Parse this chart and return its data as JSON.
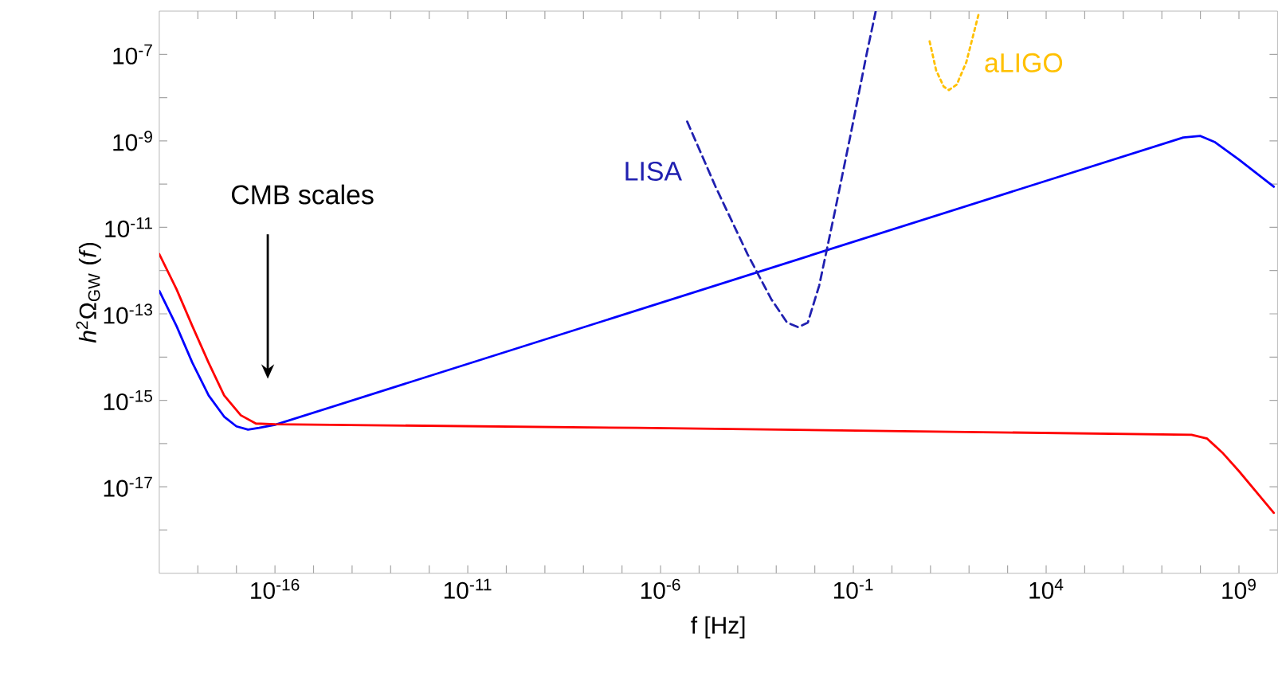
{
  "chart_data": {
    "type": "line",
    "log": "xy",
    "xlabel": "f [Hz]",
    "ylabel": "*h*$^{2}$Ω$_{GW}$ (*f*)",
    "marker": "none",
    "grid": false,
    "xlim": [
      1e-19,
      10000000000.0
    ],
    "ylim": [
      1e-19,
      1e-06
    ],
    "xticks": [
      {
        "value": 1e-18,
        "label": null
      },
      {
        "value": 1e-17,
        "label": null
      },
      {
        "value": 1e-16,
        "label": "10$^{-16}$"
      },
      {
        "value": 1e-15,
        "label": null
      },
      {
        "value": 1e-14,
        "label": null
      },
      {
        "value": 1e-13,
        "label": null
      },
      {
        "value": 1e-12,
        "label": null
      },
      {
        "value": 1e-11,
        "label": "10$^{-11}$"
      },
      {
        "value": 1e-10,
        "label": null
      },
      {
        "value": 1e-09,
        "label": null
      },
      {
        "value": 1e-08,
        "label": null
      },
      {
        "value": 1e-07,
        "label": null
      },
      {
        "value": 1e-06,
        "label": "10$^{-6}$"
      },
      {
        "value": 1e-05,
        "label": null
      },
      {
        "value": 0.0001,
        "label": null
      },
      {
        "value": 0.001,
        "label": null
      },
      {
        "value": 0.01,
        "label": null
      },
      {
        "value": 0.1,
        "label": "10$^{-1}$"
      },
      {
        "value": 1,
        "label": null
      },
      {
        "value": 10,
        "label": null
      },
      {
        "value": 100,
        "label": null
      },
      {
        "value": 1000,
        "label": null
      },
      {
        "value": 10000.0,
        "label": "10$^{4}$"
      },
      {
        "value": 100000.0,
        "label": null
      },
      {
        "value": 1000000.0,
        "label": null
      },
      {
        "value": 10000000.0,
        "label": null
      },
      {
        "value": 100000000.0,
        "label": null
      },
      {
        "value": 1000000000.0,
        "label": "10$^{9}$"
      }
    ],
    "yticks": [
      {
        "value": 1e-18,
        "label": null
      },
      {
        "value": 1e-17,
        "label": "10$^{-17}$"
      },
      {
        "value": 1e-16,
        "label": null
      },
      {
        "value": 1e-15,
        "label": "10$^{-15}$"
      },
      {
        "value": 1e-14,
        "label": null
      },
      {
        "value": 1e-13,
        "label": "10$^{-13}$"
      },
      {
        "value": 1e-12,
        "label": null
      },
      {
        "value": 1e-11,
        "label": "10$^{-11}$"
      },
      {
        "value": 1e-10,
        "label": null
      },
      {
        "value": 1e-09,
        "label": "10$^{-9}$"
      },
      {
        "value": 1e-08,
        "label": null
      },
      {
        "value": 1e-07,
        "label": "10$^{-7}$"
      }
    ],
    "series": [
      {
        "color": "#0000ff",
        "line_style": "solid",
        "x": [
          1e-19,
          2.8e-19,
          7.2e-19,
          1.9e-18,
          4.8e-18,
          1e-17,
          2e-17,
          3.9e-17,
          1e-16,
          36000000.0,
          100000000.0,
          240000000.0,
          1000000000.0,
          8000000000.0
        ],
        "values": [
          3.4e-13,
          5.2e-14,
          7.4e-15,
          1.3e-15,
          4.2e-16,
          2.5e-16,
          2.1e-16,
          2.3e-16,
          2.7e-16,
          1.2e-09,
          1.3e-09,
          9.3e-10,
          3.7e-10,
          8.7e-11
        ]
      },
      {
        "color": "#ff0000",
        "line_style": "solid",
        "x": [
          1e-19,
          2.8e-19,
          7.2e-19,
          1.9e-18,
          4.8e-18,
          1.3e-17,
          3.2e-17,
          1e-16,
          2.4e-07,
          59000000.0,
          150000000.0,
          390000000.0,
          1000000000.0,
          8000000000.0
        ],
        "values": [
          2.4e-12,
          3.7e-13,
          5.2e-14,
          7.4e-15,
          1.3e-15,
          4.5e-16,
          2.9e-16,
          2.8e-16,
          2.3e-16,
          1.6e-16,
          1.3e-16,
          5.9e-17,
          2.3e-17,
          2.5e-18
        ]
      },
      {
        "name": "LISA",
        "color": "#2020b0",
        "line_style": "dashed",
        "x": [
          4.9e-06,
          2.7e-05,
          0.00018,
          0.00074,
          0.0019,
          0.0037,
          0.0066,
          0.013,
          0.032,
          0.085,
          0.22,
          0.38
        ],
        "values": [
          2.8e-09,
          8.5e-11,
          2.4e-12,
          2.2e-13,
          6.3e-14,
          4.9e-14,
          6.3e-14,
          4.5e-13,
          2e-11,
          1.4e-09,
          1e-07,
          1e-06
        ]
      },
      {
        "name": "aLIGO",
        "color": "#ffc000",
        "line_style": "dotted",
        "x": [
          9.5,
          14,
          22,
          30,
          48,
          85,
          180
        ],
        "values": [
          2e-07,
          4.3e-08,
          1.8e-08,
          1.5e-08,
          2e-08,
          6.6e-08,
          9e-07
        ]
      }
    ],
    "annotations": [
      "CMB scales"
    ]
  }
}
